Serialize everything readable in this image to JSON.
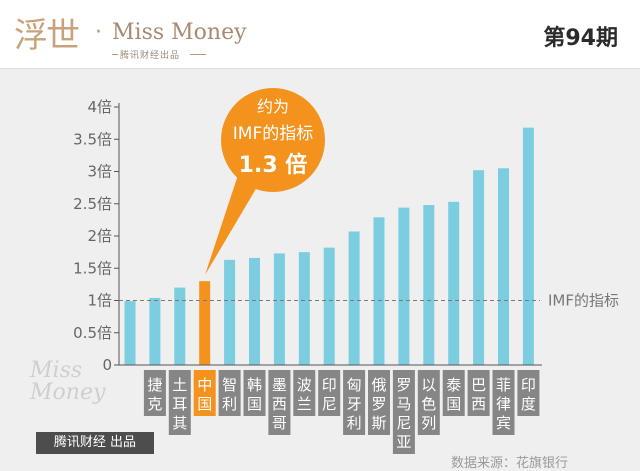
{
  "header": {
    "logo_cn": "浮世",
    "logo_dot": "·",
    "logo_en": "Miss Money",
    "logo_sub": "腾讯财经出品",
    "issue": "第94期"
  },
  "callout": {
    "line1": "约为",
    "line2": "IMF的指标",
    "line3": "1.3 倍"
  },
  "reference_line": {
    "label": "IMF的指标",
    "value": 1
  },
  "watermark": {
    "line1": "Miss",
    "line2": "Money"
  },
  "footer": {
    "tag": "腾讯财经 出品",
    "source": "数据来源：花旗银行"
  },
  "colors": {
    "bar": "#7ccde0",
    "highlight": "#f4921e",
    "label_box": "#868686",
    "label_box_highlight": "#f4921e",
    "axis": "#555555"
  },
  "chart_data": {
    "type": "bar",
    "title": "",
    "xlabel": "",
    "ylabel": "",
    "ylim": [
      0,
      4
    ],
    "yticks": [
      "0",
      "0.5倍",
      "1倍",
      "1.5倍",
      "2倍",
      "2.5倍",
      "3倍",
      "3.5倍",
      "4倍"
    ],
    "categories": [
      "",
      "捷克",
      "土耳其",
      "中国",
      "智利",
      "韩国",
      "墨西哥",
      "波兰",
      "印尼",
      "匈牙利",
      "俄罗斯",
      "罗马尼亚",
      "以色列",
      "泰国",
      "巴西",
      "菲律宾",
      "印度"
    ],
    "values": [
      0.99,
      1.04,
      1.2,
      1.3,
      1.63,
      1.66,
      1.73,
      1.75,
      1.82,
      2.07,
      2.29,
      2.44,
      2.48,
      2.53,
      3.02,
      3.05,
      3.68
    ],
    "highlight": "中国",
    "grid": false
  }
}
